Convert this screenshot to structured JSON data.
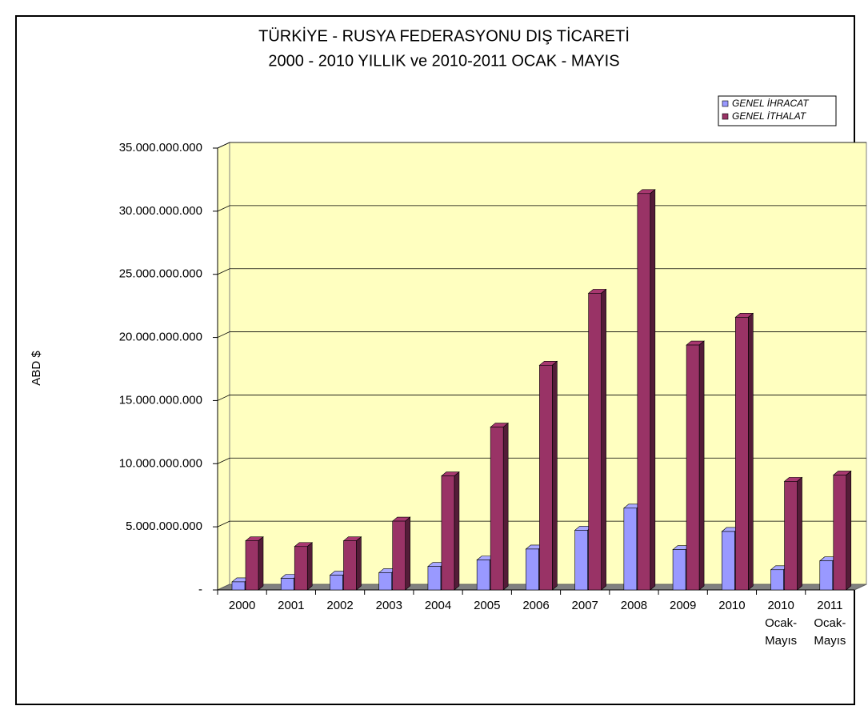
{
  "chart_data": {
    "type": "bar3d",
    "title": [
      "TÜRKİYE - RUSYA FEDERASYONU DIŞ TİCARETİ",
      "2000 - 2010 YILLIK ve 2010-2011 OCAK - MAYIS"
    ],
    "y_label": "ABD $",
    "categories": [
      "2000",
      "2001",
      "2002",
      "2003",
      "2004",
      "2005",
      "2006",
      "2007",
      "2008",
      "2009",
      "2010",
      "2010 Ocak-Mayıs",
      "2011 Ocak-Mayıs"
    ],
    "series": [
      {
        "name": "GENEL İHRACAT",
        "color": "#9999FF",
        "values": [
          640000000,
          920000000,
          1170000000,
          1370000000,
          1860000000,
          2370000000,
          3240000000,
          4730000000,
          6480000000,
          3190000000,
          4630000000,
          1600000000,
          2300000000
        ]
      },
      {
        "name": "GENEL İTHALAT",
        "color": "#993366",
        "values": [
          3890000000,
          3440000000,
          3890000000,
          5450000000,
          9030000000,
          12900000000,
          17800000000,
          23500000000,
          31400000000,
          19400000000,
          21600000000,
          8600000000,
          9100000000
        ]
      }
    ],
    "ylim": [
      0,
      35000000000
    ],
    "yticks": [
      {
        "value": 0,
        "label": "-"
      },
      {
        "value": 5000000000,
        "label": "5.000.000.000"
      },
      {
        "value": 10000000000,
        "label": "10.000.000.000"
      },
      {
        "value": 15000000000,
        "label": "15.000.000.000"
      },
      {
        "value": 20000000000,
        "label": "20.000.000.000"
      },
      {
        "value": 25000000000,
        "label": "25.000.000.000"
      },
      {
        "value": 30000000000,
        "label": "30.000.000.000"
      },
      {
        "value": 35000000000,
        "label": "35.000.000.000"
      }
    ],
    "grid": true,
    "legend": "top-right"
  }
}
